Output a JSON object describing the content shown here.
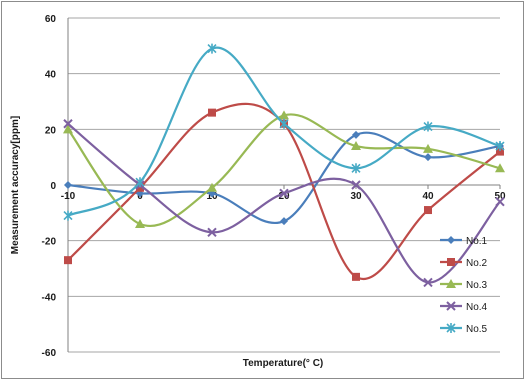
{
  "chart_data": {
    "type": "line",
    "title": "",
    "xlabel": "Temperature(° C)",
    "ylabel": "Measurement accuracy[ppm]",
    "x": [
      -10,
      0,
      10,
      20,
      30,
      40,
      50
    ],
    "x_ticks": [
      -10,
      0,
      10,
      20,
      30,
      40,
      50
    ],
    "xlim": [
      -10,
      50
    ],
    "y_ticks": [
      -60,
      -40,
      -20,
      0,
      20,
      40,
      60
    ],
    "ylim": [
      -60,
      60
    ],
    "grid": "horizontal",
    "legend_position": "right",
    "series": [
      {
        "name": "No.1",
        "color": "#4a7ebb",
        "marker": "diamond",
        "values": [
          0,
          -3,
          -3,
          -13,
          18,
          10,
          14
        ]
      },
      {
        "name": "No.2",
        "color": "#be4b48",
        "marker": "square",
        "values": [
          -27,
          -1,
          26,
          22,
          -33,
          -9,
          12
        ]
      },
      {
        "name": "No.3",
        "color": "#98b954",
        "marker": "triangle",
        "values": [
          20,
          -14,
          -1,
          25,
          14,
          13,
          6
        ]
      },
      {
        "name": "No.4",
        "color": "#7d60a0",
        "marker": "x",
        "values": [
          22,
          0,
          -17,
          -3,
          0,
          -35,
          -6
        ]
      },
      {
        "name": "No.5",
        "color": "#46aac5",
        "marker": "star",
        "values": [
          -11,
          1,
          49,
          22,
          6,
          21,
          14
        ]
      }
    ]
  }
}
